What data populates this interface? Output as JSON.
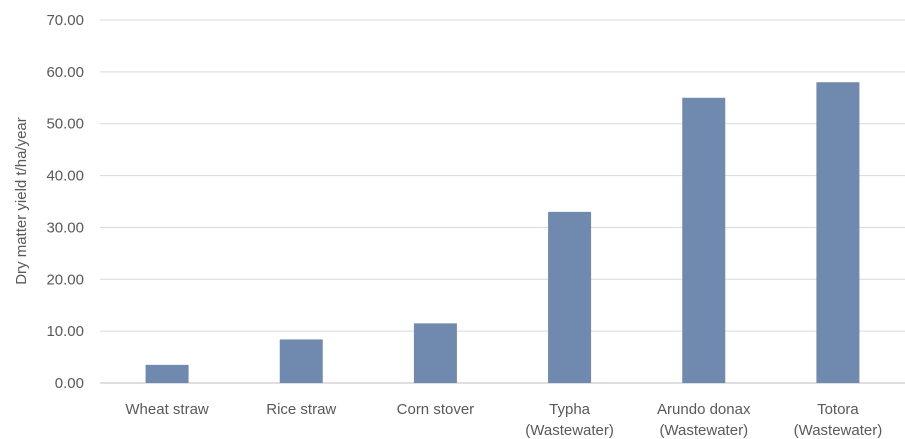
{
  "chart_data": {
    "type": "bar",
    "categories": [
      [
        "Wheat straw"
      ],
      [
        "Rice straw"
      ],
      [
        "Corn stover"
      ],
      [
        "Typha",
        "(Wastewater)"
      ],
      [
        "Arundo donax",
        "(Wastewater)"
      ],
      [
        "Totora",
        "(Wastewater)"
      ]
    ],
    "values": [
      3.5,
      8.4,
      11.5,
      33.0,
      55.0,
      58.0
    ],
    "title": "",
    "xlabel": "",
    "ylabel": "Dry matter yield t/ha/year",
    "ylim": [
      0,
      70
    ],
    "yticks": [
      "0.00",
      "10.00",
      "20.00",
      "30.00",
      "40.00",
      "50.00",
      "60.00",
      "70.00"
    ],
    "grid": true,
    "legend": "none",
    "colors": {
      "bar": "#7089ae",
      "grid": "#d9d9d9",
      "axis": "#bfbfbf",
      "text": "#595959"
    }
  }
}
